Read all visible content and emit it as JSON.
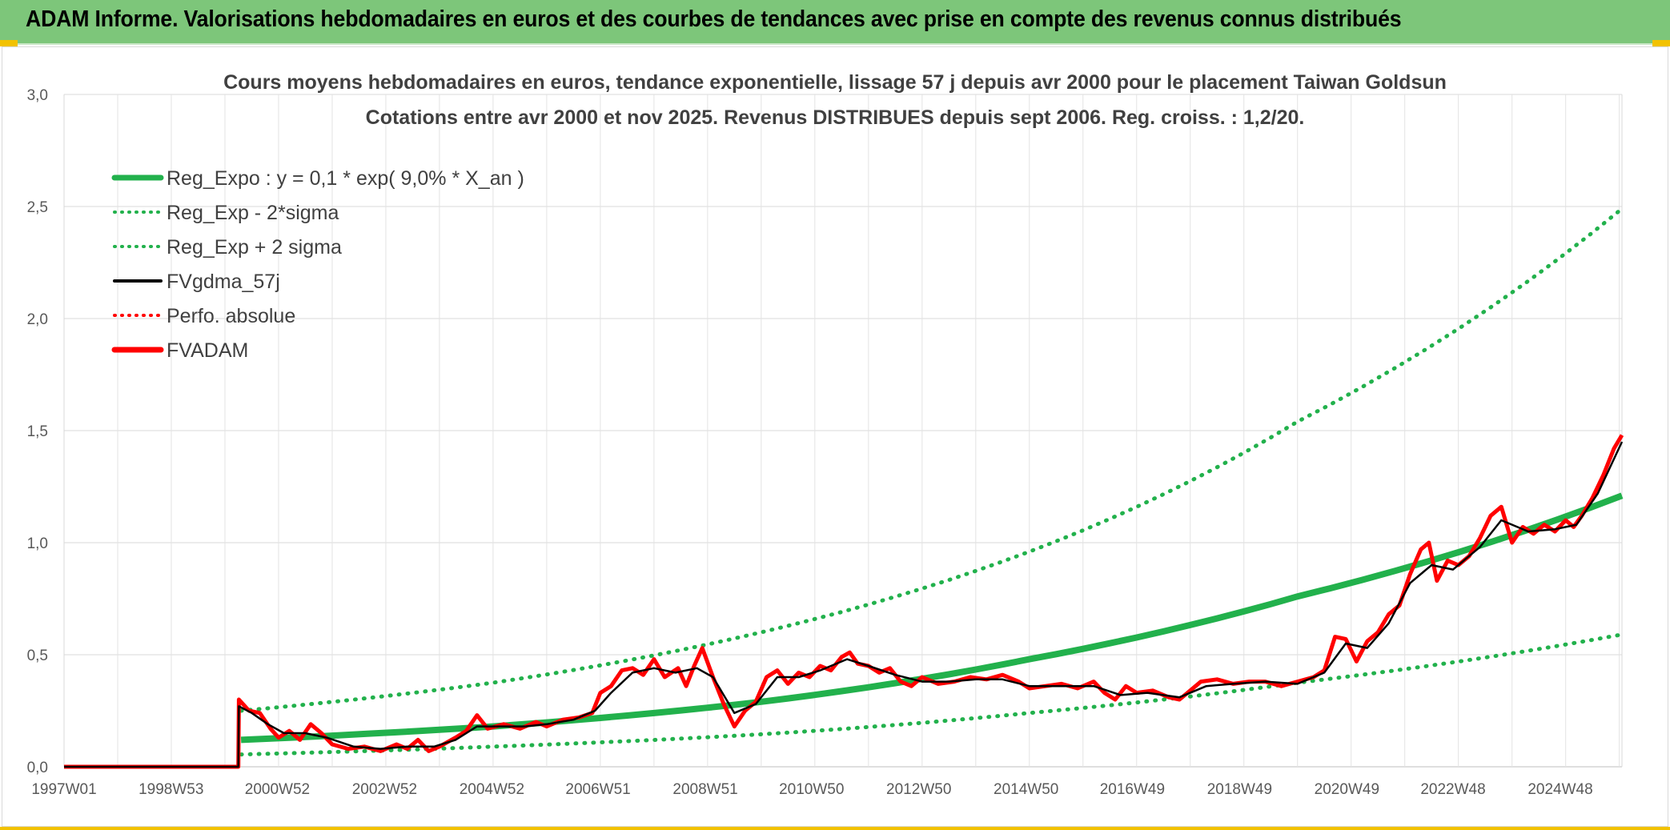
{
  "header": {
    "title": "ADAM Informe. Valorisations hebdomadaires en euros et des courbes de tendances avec prise en compte des revenus connus distribués"
  },
  "colors": {
    "header_bg": "#7dc67a",
    "accent_yellow": "#f2c200",
    "trend_green": "#22b14c",
    "adam_red": "#ff0000",
    "smooth_black": "#000000"
  },
  "chart_data": {
    "type": "line",
    "title": "Cours moyens hebdomadaires en euros, tendance exponentielle, lissage 57 j depuis avr 2000 pour le placement Taiwan Goldsun",
    "subtitle": "Cotations entre avr 2000 et nov 2025. Revenus DISTRIBUES depuis sept 2006. Reg. croiss. : 1,2/20.",
    "ylim": [
      0,
      3
    ],
    "xlim": [
      1997.0,
      2026.05
    ],
    "y_ticks": [
      "0,0",
      "0,5",
      "1,0",
      "1,5",
      "2,0",
      "2,5",
      "3,0"
    ],
    "x_ticks": [
      "1997W01",
      "1998W53",
      "2000W52",
      "2002W52",
      "2004W52",
      "2006W51",
      "2008W51",
      "2010W50",
      "2012W50",
      "2014W50",
      "2016W49",
      "2018W49",
      "2020W49",
      "2022W48",
      "2024W48"
    ],
    "grid": true,
    "legend_position": "top-left",
    "legend": [
      {
        "label": "Reg_Expo : y = 0,1 * exp( 9,0% *  X_an )",
        "color": "#22b14c",
        "style": "solid-thick"
      },
      {
        "label": "Reg_Exp - 2*sigma",
        "color": "#22b14c",
        "style": "dotted"
      },
      {
        "label": "Reg_Exp + 2 sigma",
        "color": "#22b14c",
        "style": "dotted"
      },
      {
        "label": "FVgdma_57j",
        "color": "#000000",
        "style": "solid"
      },
      {
        "label": "Perfo. absolue",
        "color": "#ff0000",
        "style": "dotted"
      },
      {
        "label": "FVADAM",
        "color": "#ff0000",
        "style": "solid-thick"
      }
    ],
    "trend": {
      "start_year": 2000.3,
      "end_year": 2026.05,
      "points": [
        [
          2000.3,
          0.12
        ],
        [
          2005.0,
          0.18
        ],
        [
          2010.0,
          0.29
        ],
        [
          2015.0,
          0.48
        ],
        [
          2020.0,
          0.76
        ],
        [
          2026.05,
          1.21
        ]
      ]
    },
    "band_low": {
      "points": [
        [
          2000.3,
          0.055
        ],
        [
          2005.0,
          0.09
        ],
        [
          2010.0,
          0.145
        ],
        [
          2015.0,
          0.24
        ],
        [
          2020.0,
          0.375
        ],
        [
          2026.05,
          0.59
        ]
      ]
    },
    "band_high": {
      "points": [
        [
          2000.3,
          0.25
        ],
        [
          2005.0,
          0.375
        ],
        [
          2010.0,
          0.6
        ],
        [
          2015.0,
          0.96
        ],
        [
          2020.0,
          1.54
        ],
        [
          2026.05,
          2.49
        ]
      ]
    },
    "fvadam": {
      "points": [
        [
          1997.0,
          0.0
        ],
        [
          2000.25,
          0.0
        ],
        [
          2000.26,
          0.3
        ],
        [
          2000.45,
          0.25
        ],
        [
          2000.65,
          0.24
        ],
        [
          2000.85,
          0.17
        ],
        [
          2001.0,
          0.13
        ],
        [
          2001.2,
          0.16
        ],
        [
          2001.4,
          0.12
        ],
        [
          2001.6,
          0.19
        ],
        [
          2001.8,
          0.15
        ],
        [
          2002.0,
          0.1
        ],
        [
          2002.3,
          0.08
        ],
        [
          2002.6,
          0.09
        ],
        [
          2002.9,
          0.07
        ],
        [
          2003.2,
          0.1
        ],
        [
          2003.4,
          0.08
        ],
        [
          2003.6,
          0.12
        ],
        [
          2003.8,
          0.07
        ],
        [
          2004.0,
          0.09
        ],
        [
          2004.3,
          0.13
        ],
        [
          2004.5,
          0.16
        ],
        [
          2004.7,
          0.23
        ],
        [
          2004.9,
          0.17
        ],
        [
          2005.2,
          0.19
        ],
        [
          2005.5,
          0.17
        ],
        [
          2005.8,
          0.2
        ],
        [
          2006.0,
          0.18
        ],
        [
          2006.3,
          0.21
        ],
        [
          2006.6,
          0.22
        ],
        [
          2006.85,
          0.24
        ],
        [
          2007.0,
          0.33
        ],
        [
          2007.2,
          0.36
        ],
        [
          2007.4,
          0.43
        ],
        [
          2007.6,
          0.44
        ],
        [
          2007.8,
          0.41
        ],
        [
          2008.0,
          0.48
        ],
        [
          2008.2,
          0.4
        ],
        [
          2008.45,
          0.44
        ],
        [
          2008.6,
          0.36
        ],
        [
          2008.75,
          0.45
        ],
        [
          2008.9,
          0.53
        ],
        [
          2009.1,
          0.4
        ],
        [
          2009.3,
          0.28
        ],
        [
          2009.5,
          0.18
        ],
        [
          2009.7,
          0.25
        ],
        [
          2009.9,
          0.29
        ],
        [
          2010.1,
          0.4
        ],
        [
          2010.3,
          0.43
        ],
        [
          2010.5,
          0.37
        ],
        [
          2010.7,
          0.42
        ],
        [
          2010.9,
          0.4
        ],
        [
          2011.1,
          0.45
        ],
        [
          2011.3,
          0.43
        ],
        [
          2011.5,
          0.49
        ],
        [
          2011.65,
          0.51
        ],
        [
          2011.8,
          0.46
        ],
        [
          2012.0,
          0.45
        ],
        [
          2012.2,
          0.42
        ],
        [
          2012.4,
          0.44
        ],
        [
          2012.6,
          0.38
        ],
        [
          2012.8,
          0.36
        ],
        [
          2013.0,
          0.4
        ],
        [
          2013.3,
          0.37
        ],
        [
          2013.6,
          0.38
        ],
        [
          2013.9,
          0.4
        ],
        [
          2014.2,
          0.39
        ],
        [
          2014.5,
          0.41
        ],
        [
          2014.8,
          0.38
        ],
        [
          2015.0,
          0.35
        ],
        [
          2015.3,
          0.36
        ],
        [
          2015.6,
          0.37
        ],
        [
          2015.9,
          0.35
        ],
        [
          2016.2,
          0.38
        ],
        [
          2016.4,
          0.33
        ],
        [
          2016.6,
          0.3
        ],
        [
          2016.8,
          0.36
        ],
        [
          2017.0,
          0.33
        ],
        [
          2017.3,
          0.34
        ],
        [
          2017.6,
          0.31
        ],
        [
          2017.8,
          0.3
        ],
        [
          2018.0,
          0.34
        ],
        [
          2018.2,
          0.38
        ],
        [
          2018.5,
          0.39
        ],
        [
          2018.8,
          0.37
        ],
        [
          2019.1,
          0.38
        ],
        [
          2019.4,
          0.38
        ],
        [
          2019.7,
          0.36
        ],
        [
          2020.0,
          0.38
        ],
        [
          2020.3,
          0.4
        ],
        [
          2020.5,
          0.43
        ],
        [
          2020.7,
          0.58
        ],
        [
          2020.9,
          0.57
        ],
        [
          2021.1,
          0.47
        ],
        [
          2021.3,
          0.56
        ],
        [
          2021.5,
          0.6
        ],
        [
          2021.7,
          0.68
        ],
        [
          2021.9,
          0.72
        ],
        [
          2022.1,
          0.86
        ],
        [
          2022.3,
          0.97
        ],
        [
          2022.45,
          1.0
        ],
        [
          2022.6,
          0.83
        ],
        [
          2022.8,
          0.92
        ],
        [
          2023.0,
          0.9
        ],
        [
          2023.2,
          0.94
        ],
        [
          2023.4,
          1.02
        ],
        [
          2023.6,
          1.12
        ],
        [
          2023.8,
          1.16
        ],
        [
          2024.0,
          1.0
        ],
        [
          2024.2,
          1.07
        ],
        [
          2024.4,
          1.04
        ],
        [
          2024.6,
          1.08
        ],
        [
          2024.8,
          1.05
        ],
        [
          2025.0,
          1.1
        ],
        [
          2025.15,
          1.07
        ],
        [
          2025.3,
          1.12
        ],
        [
          2025.5,
          1.2
        ],
        [
          2025.7,
          1.3
        ],
        [
          2025.9,
          1.42
        ],
        [
          2026.05,
          1.48
        ]
      ]
    },
    "fvgdma": {
      "points": [
        [
          1997.0,
          0.0
        ],
        [
          2000.25,
          0.0
        ],
        [
          2000.26,
          0.27
        ],
        [
          2000.5,
          0.24
        ],
        [
          2000.8,
          0.19
        ],
        [
          2001.1,
          0.15
        ],
        [
          2001.5,
          0.15
        ],
        [
          2001.9,
          0.13
        ],
        [
          2002.4,
          0.09
        ],
        [
          2002.9,
          0.08
        ],
        [
          2003.4,
          0.09
        ],
        [
          2003.9,
          0.09
        ],
        [
          2004.3,
          0.12
        ],
        [
          2004.7,
          0.18
        ],
        [
          2005.1,
          0.18
        ],
        [
          2005.6,
          0.18
        ],
        [
          2006.0,
          0.19
        ],
        [
          2006.5,
          0.21
        ],
        [
          2006.9,
          0.25
        ],
        [
          2007.2,
          0.33
        ],
        [
          2007.6,
          0.42
        ],
        [
          2008.0,
          0.44
        ],
        [
          2008.4,
          0.42
        ],
        [
          2008.8,
          0.44
        ],
        [
          2009.1,
          0.4
        ],
        [
          2009.5,
          0.24
        ],
        [
          2009.9,
          0.28
        ],
        [
          2010.3,
          0.4
        ],
        [
          2010.7,
          0.4
        ],
        [
          2011.1,
          0.43
        ],
        [
          2011.6,
          0.48
        ],
        [
          2012.0,
          0.45
        ],
        [
          2012.5,
          0.41
        ],
        [
          2013.0,
          0.38
        ],
        [
          2013.5,
          0.38
        ],
        [
          2014.0,
          0.39
        ],
        [
          2014.5,
          0.39
        ],
        [
          2015.0,
          0.36
        ],
        [
          2015.6,
          0.36
        ],
        [
          2016.2,
          0.36
        ],
        [
          2016.7,
          0.32
        ],
        [
          2017.2,
          0.33
        ],
        [
          2017.8,
          0.31
        ],
        [
          2018.3,
          0.36
        ],
        [
          2018.8,
          0.37
        ],
        [
          2019.4,
          0.38
        ],
        [
          2020.0,
          0.37
        ],
        [
          2020.5,
          0.42
        ],
        [
          2020.9,
          0.55
        ],
        [
          2021.3,
          0.53
        ],
        [
          2021.7,
          0.64
        ],
        [
          2022.1,
          0.82
        ],
        [
          2022.5,
          0.9
        ],
        [
          2022.9,
          0.88
        ],
        [
          2023.4,
          0.98
        ],
        [
          2023.8,
          1.1
        ],
        [
          2024.3,
          1.05
        ],
        [
          2024.8,
          1.06
        ],
        [
          2025.2,
          1.08
        ],
        [
          2025.6,
          1.22
        ],
        [
          2026.05,
          1.45
        ]
      ]
    }
  }
}
